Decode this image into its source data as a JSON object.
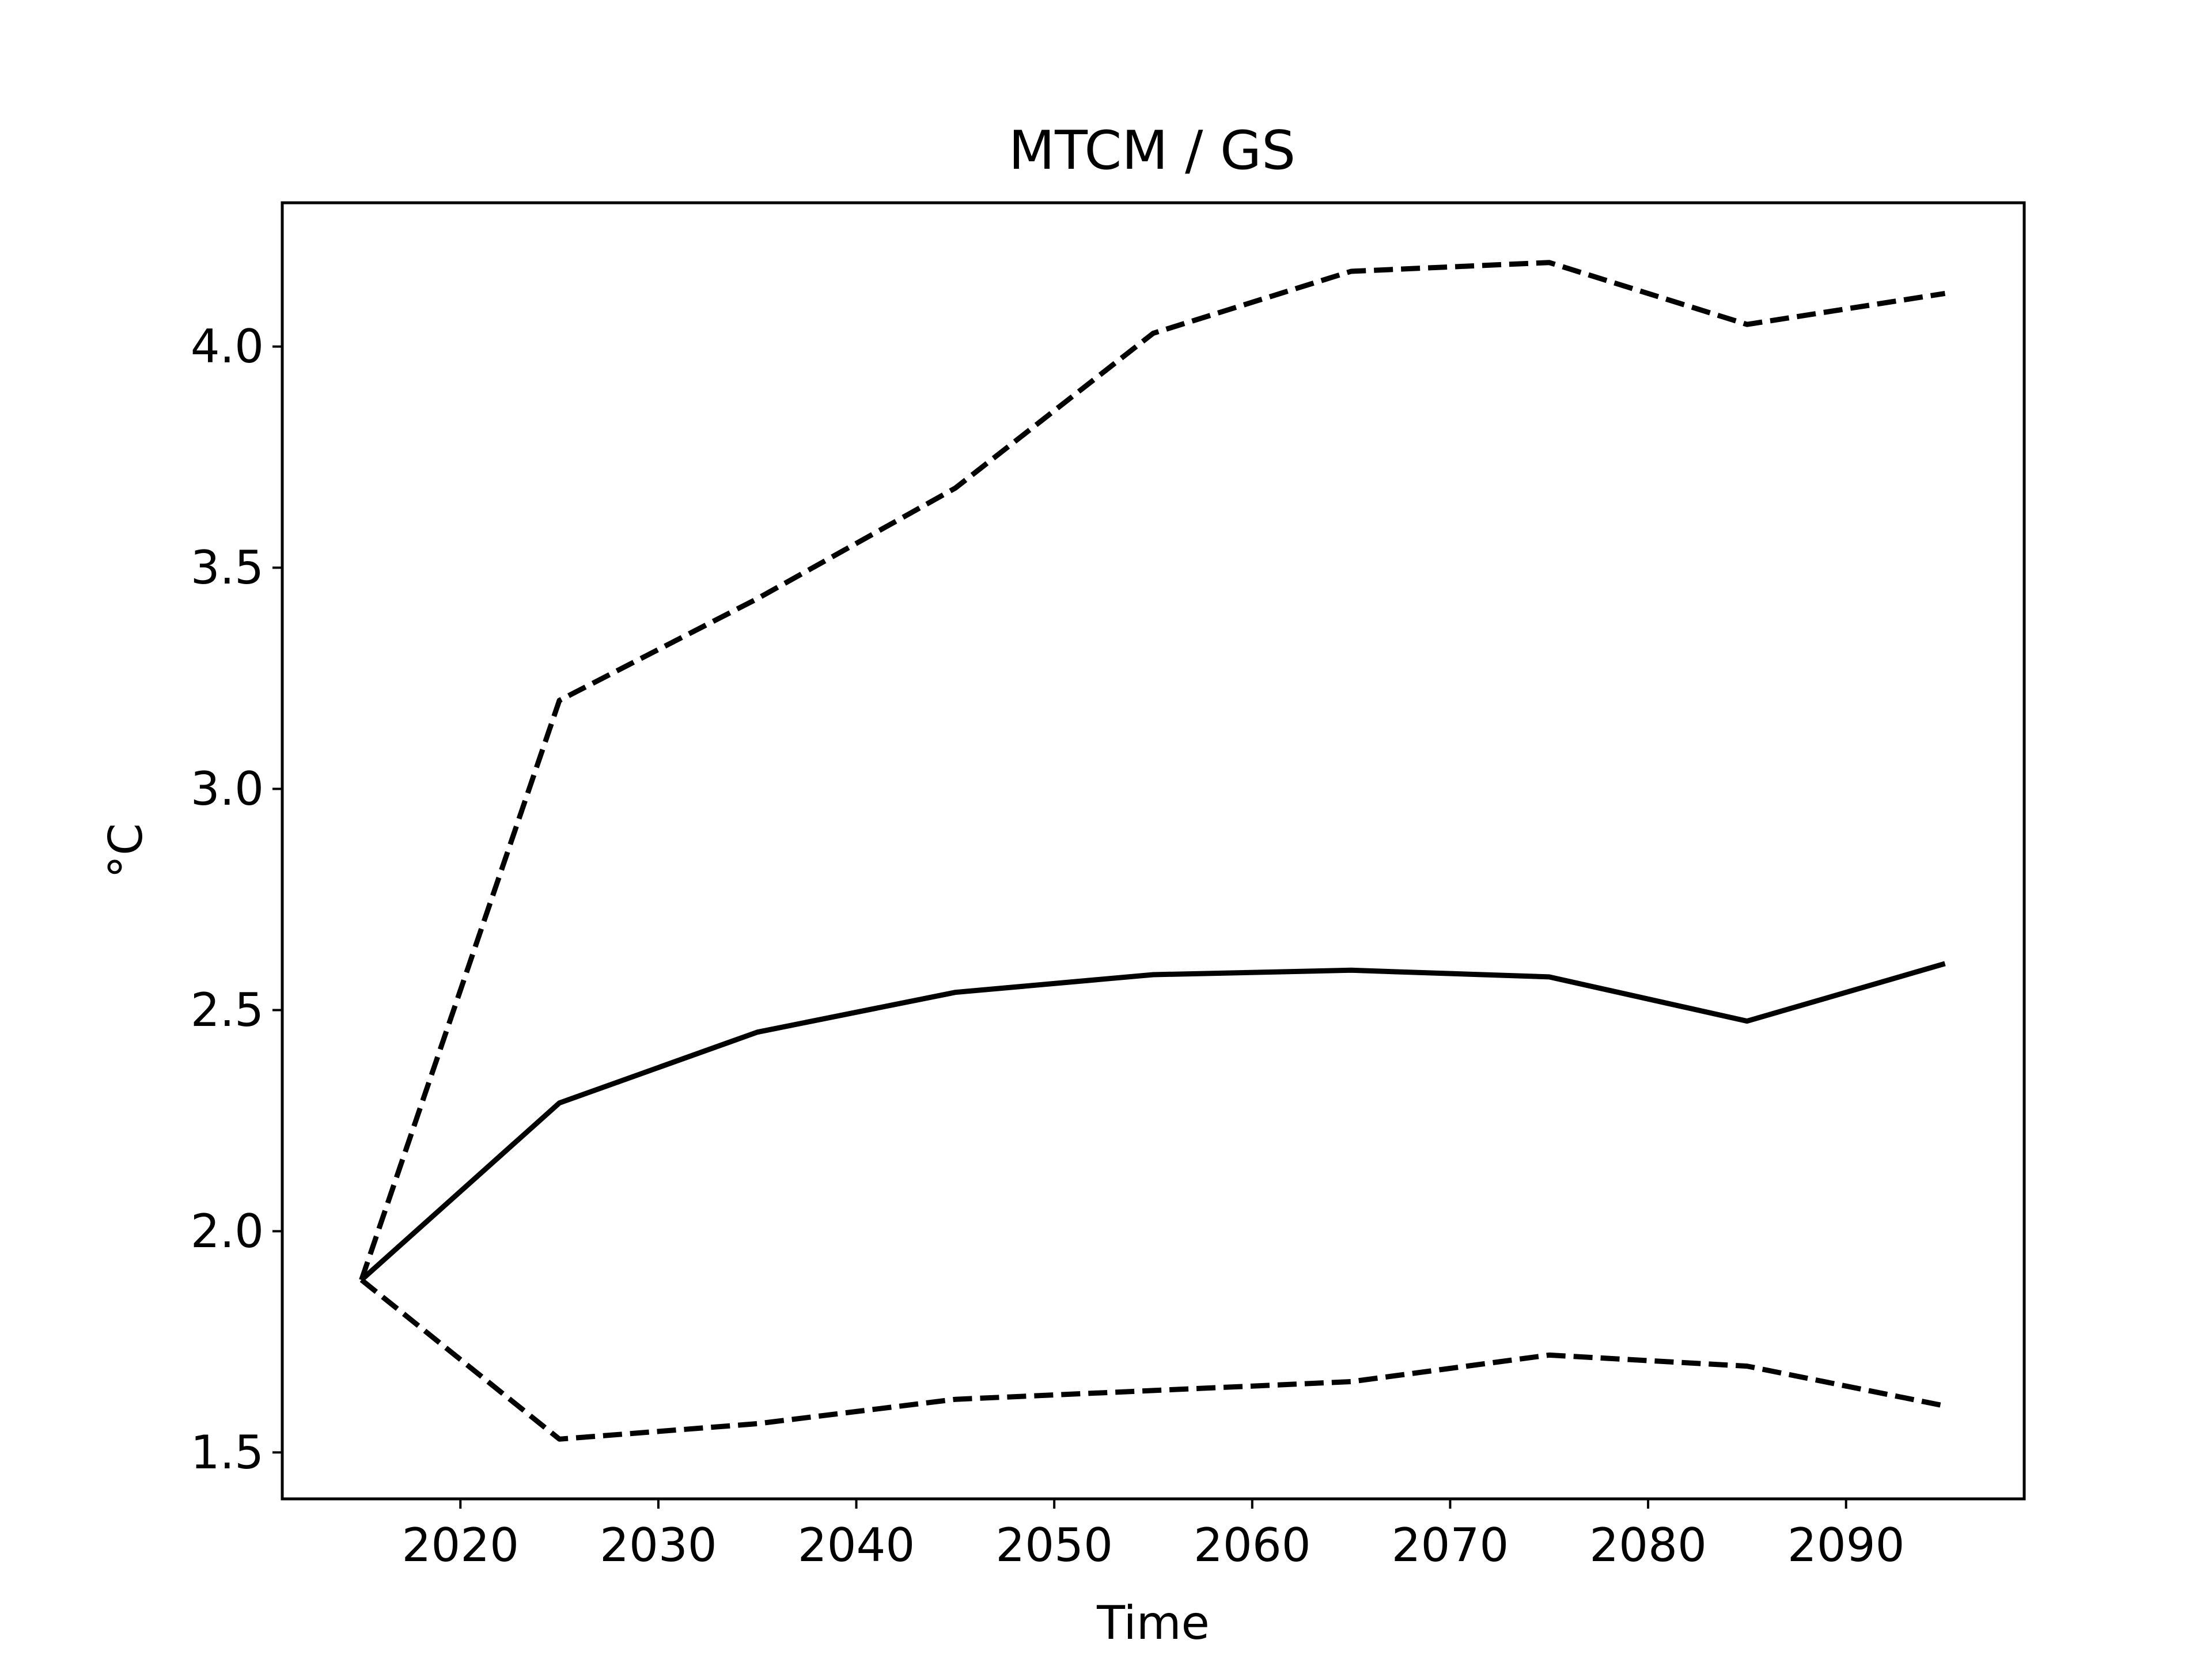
{
  "chart_data": {
    "type": "line",
    "title": "MTCM / GS",
    "xlabel": "Time",
    "ylabel": "°C",
    "xlim": [
      2011,
      2099
    ],
    "ylim": [
      1.395,
      4.325
    ],
    "x_ticks": [
      2020,
      2030,
      2040,
      2050,
      2060,
      2070,
      2080,
      2090
    ],
    "y_ticks": [
      1.5,
      2.0,
      2.5,
      3.0,
      3.5,
      4.0
    ],
    "x_tick_labels": [
      "2020",
      "2030",
      "2040",
      "2050",
      "2060",
      "2070",
      "2080",
      "2090"
    ],
    "y_tick_labels": [
      "1.5",
      "2.0",
      "2.5",
      "3.0",
      "3.5",
      "4.0"
    ],
    "grid": false,
    "x": [
      2015,
      2025,
      2035,
      2045,
      2055,
      2065,
      2075,
      2085,
      2095
    ],
    "series": [
      {
        "style": "solid",
        "color": "#000000",
        "values": [
          1.89,
          2.29,
          2.45,
          2.54,
          2.58,
          2.59,
          2.575,
          2.475,
          2.605
        ]
      },
      {
        "style": "dashed",
        "color": "#000000",
        "values": [
          1.89,
          3.2,
          3.43,
          3.68,
          4.03,
          4.17,
          4.19,
          4.05,
          4.12
        ]
      },
      {
        "style": "dashed",
        "color": "#000000",
        "values": [
          1.89,
          1.53,
          1.565,
          1.62,
          1.64,
          1.66,
          1.72,
          1.695,
          1.605
        ]
      }
    ]
  }
}
